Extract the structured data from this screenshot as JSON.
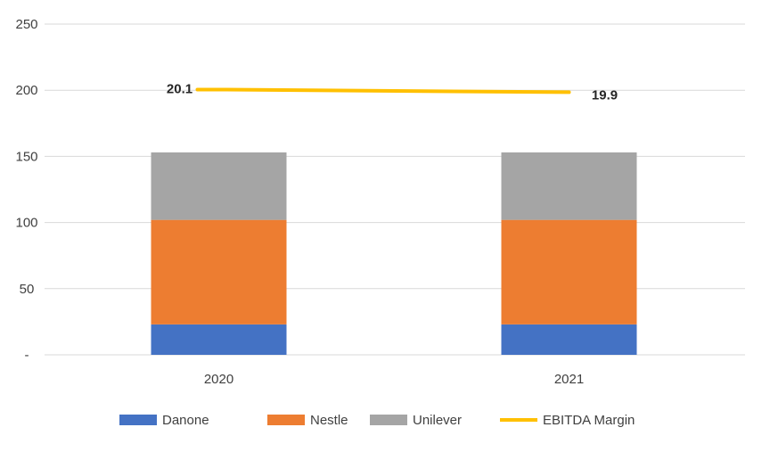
{
  "chart_data": {
    "type": "bar",
    "stacked": true,
    "categories": [
      "2020",
      "2021"
    ],
    "ylim": [
      0,
      250
    ],
    "y_ticks": [
      {
        "value": 0,
        "label": "-"
      },
      {
        "value": 50,
        "label": "50"
      },
      {
        "value": 100,
        "label": "100"
      },
      {
        "value": 150,
        "label": "150"
      },
      {
        "value": 200,
        "label": "200"
      },
      {
        "value": 250,
        "label": "250"
      }
    ],
    "grid": true,
    "legend_position": "bottom",
    "series": [
      {
        "name": "Danone",
        "type": "bar",
        "color": "#4472C4",
        "values": [
          23,
          23
        ]
      },
      {
        "name": "Nestle",
        "type": "bar",
        "color": "#ED7D31",
        "values": [
          79,
          79
        ]
      },
      {
        "name": "Unilever",
        "type": "bar",
        "color": "#A5A5A5",
        "values": [
          51,
          51
        ]
      },
      {
        "name": "EBITDA Margin",
        "type": "line",
        "color": "#FFC000",
        "values": [
          20.1,
          19.9
        ],
        "plot_values": [
          200.5,
          198.5
        ],
        "labels": [
          "20.1",
          "19.9"
        ]
      }
    ]
  }
}
